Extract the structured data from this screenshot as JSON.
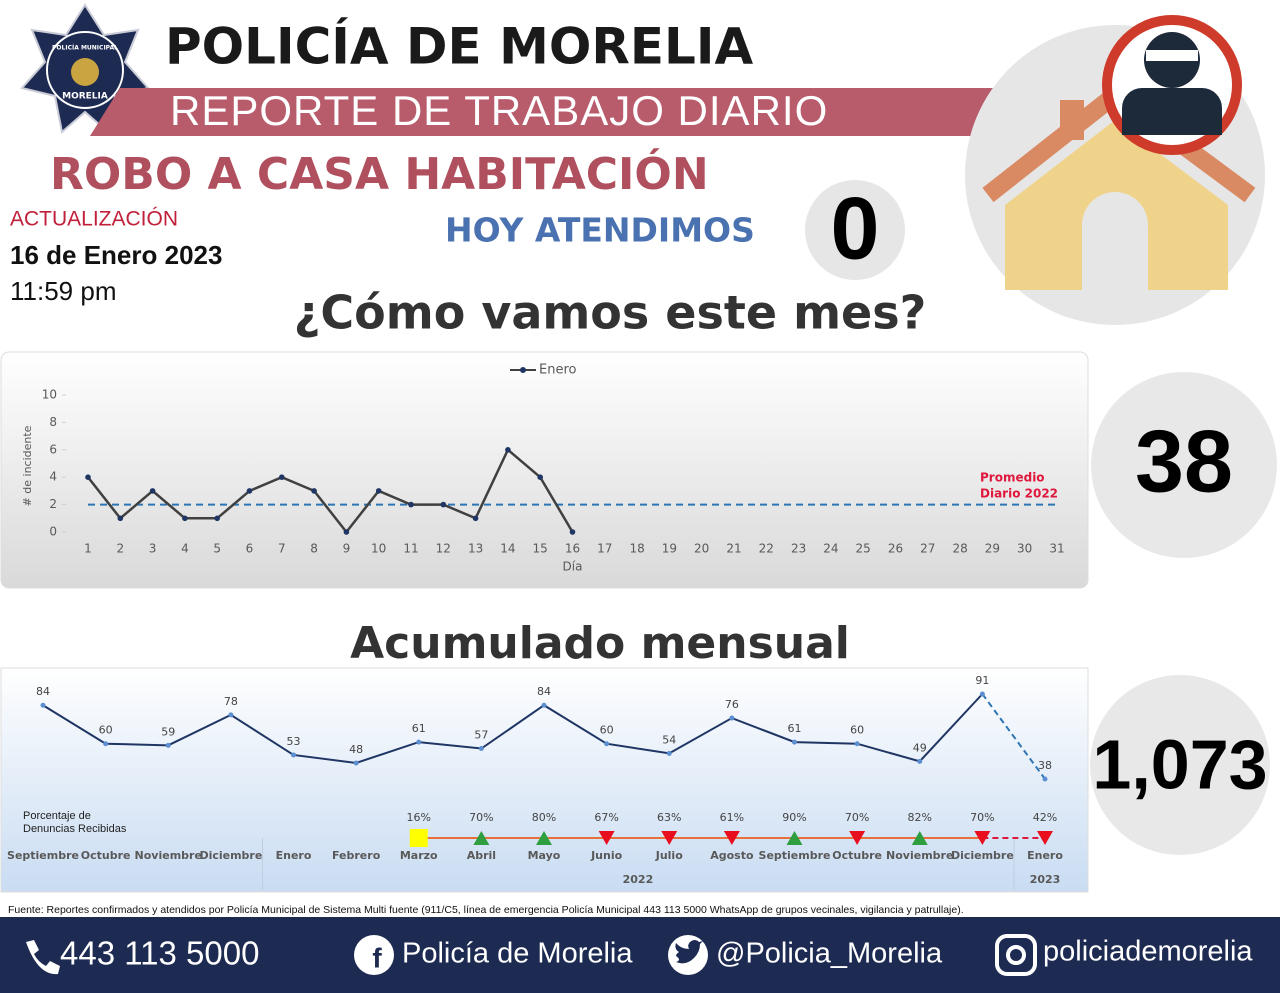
{
  "header": {
    "badge_top": "POLICÍA MUNICIPAL",
    "badge_bottom": "MORELIA",
    "title": "POLICÍA DE MORELIA",
    "subtitle": "REPORTE DE TRABAJO DIARIO",
    "section": "ROBO A CASA HABITACIÓN"
  },
  "update": {
    "label": "ACTUALIZACIÓN",
    "date": "16 de Enero 2023",
    "time": "11:59 pm"
  },
  "today": {
    "label": "HOY ATENDIMOS",
    "value": "0"
  },
  "month_question": "¿Cómo vamos este mes?",
  "month_total": "38",
  "cumulative_title": "Acumulado mensual",
  "cumulative_total": "1,073",
  "chart_data": [
    {
      "type": "line",
      "ylabel": "# de incidente",
      "xlabel": "Día",
      "categories": [
        1,
        2,
        3,
        4,
        5,
        6,
        7,
        8,
        9,
        10,
        11,
        12,
        13,
        14,
        15,
        16,
        17,
        18,
        19,
        20,
        21,
        22,
        23,
        24,
        25,
        26,
        27,
        28,
        29,
        30,
        31
      ],
      "series": [
        {
          "name": "Enero",
          "color": "#404040",
          "values": [
            4,
            1,
            3,
            1,
            1,
            3,
            4,
            3,
            0,
            3,
            2,
            2,
            1,
            6,
            4,
            0,
            null,
            null,
            null,
            null,
            null,
            null,
            null,
            null,
            null,
            null,
            null,
            null,
            null,
            null,
            null
          ]
        }
      ],
      "ylim": [
        0,
        10
      ],
      "yticks": [
        0,
        2,
        4,
        6,
        8,
        10
      ],
      "average": 2,
      "average_color": "#2e75b6",
      "average_label": [
        "Promedio",
        "Diario 2022"
      ]
    },
    {
      "type": "line",
      "categories": [
        "Septiembre",
        "Octubre",
        "Noviembre",
        "Diciembre",
        "Enero",
        "Febrero",
        "Marzo",
        "Abril",
        "Mayo",
        "Junio",
        "Julio",
        "Agosto",
        "Septiembre",
        "Octubre",
        "Noviembre",
        "Diciembre",
        "Enero"
      ],
      "values": [
        84,
        60,
        59,
        78,
        53,
        48,
        61,
        57,
        84,
        60,
        54,
        76,
        61,
        60,
        49,
        91,
        38
      ],
      "color": "#1f3564",
      "dashed_last_segment": true,
      "year_groups": [
        {
          "label": "2022",
          "from": 4,
          "to": 15
        },
        {
          "label": "2023",
          "from": 16,
          "to": 16
        }
      ],
      "percent": {
        "name": [
          "Porcentaje de",
          "Denuncias Recibidas"
        ],
        "values": [
          null,
          null,
          null,
          null,
          null,
          null,
          16,
          70,
          80,
          67,
          63,
          61,
          90,
          70,
          82,
          70,
          42
        ],
        "value_labels": [
          null,
          null,
          null,
          null,
          null,
          null,
          "16%",
          "70%",
          "80%",
          "67%",
          "63%",
          "61%",
          "90%",
          "70%",
          "82%",
          "70%",
          "42%"
        ],
        "markers": [
          null,
          null,
          null,
          null,
          null,
          null,
          "square",
          "up",
          "up",
          "down",
          "down",
          "down",
          "up",
          "down",
          "up",
          "down",
          "down"
        ]
      }
    }
  ],
  "source": "Fuente: Reportes confirmados y atendidos por Policía Municipal de Sistema Multi fuente (911/C5, línea de emergencia Policía Municipal 443 113 5000 WhatsApp de grupos vecinales, vigilancia y patrullaje).",
  "footer": {
    "phone": "443 113 5000",
    "facebook": "Policía de Morelia",
    "twitter": "@Policia_Morelia",
    "instagram": "policiademorelia"
  }
}
